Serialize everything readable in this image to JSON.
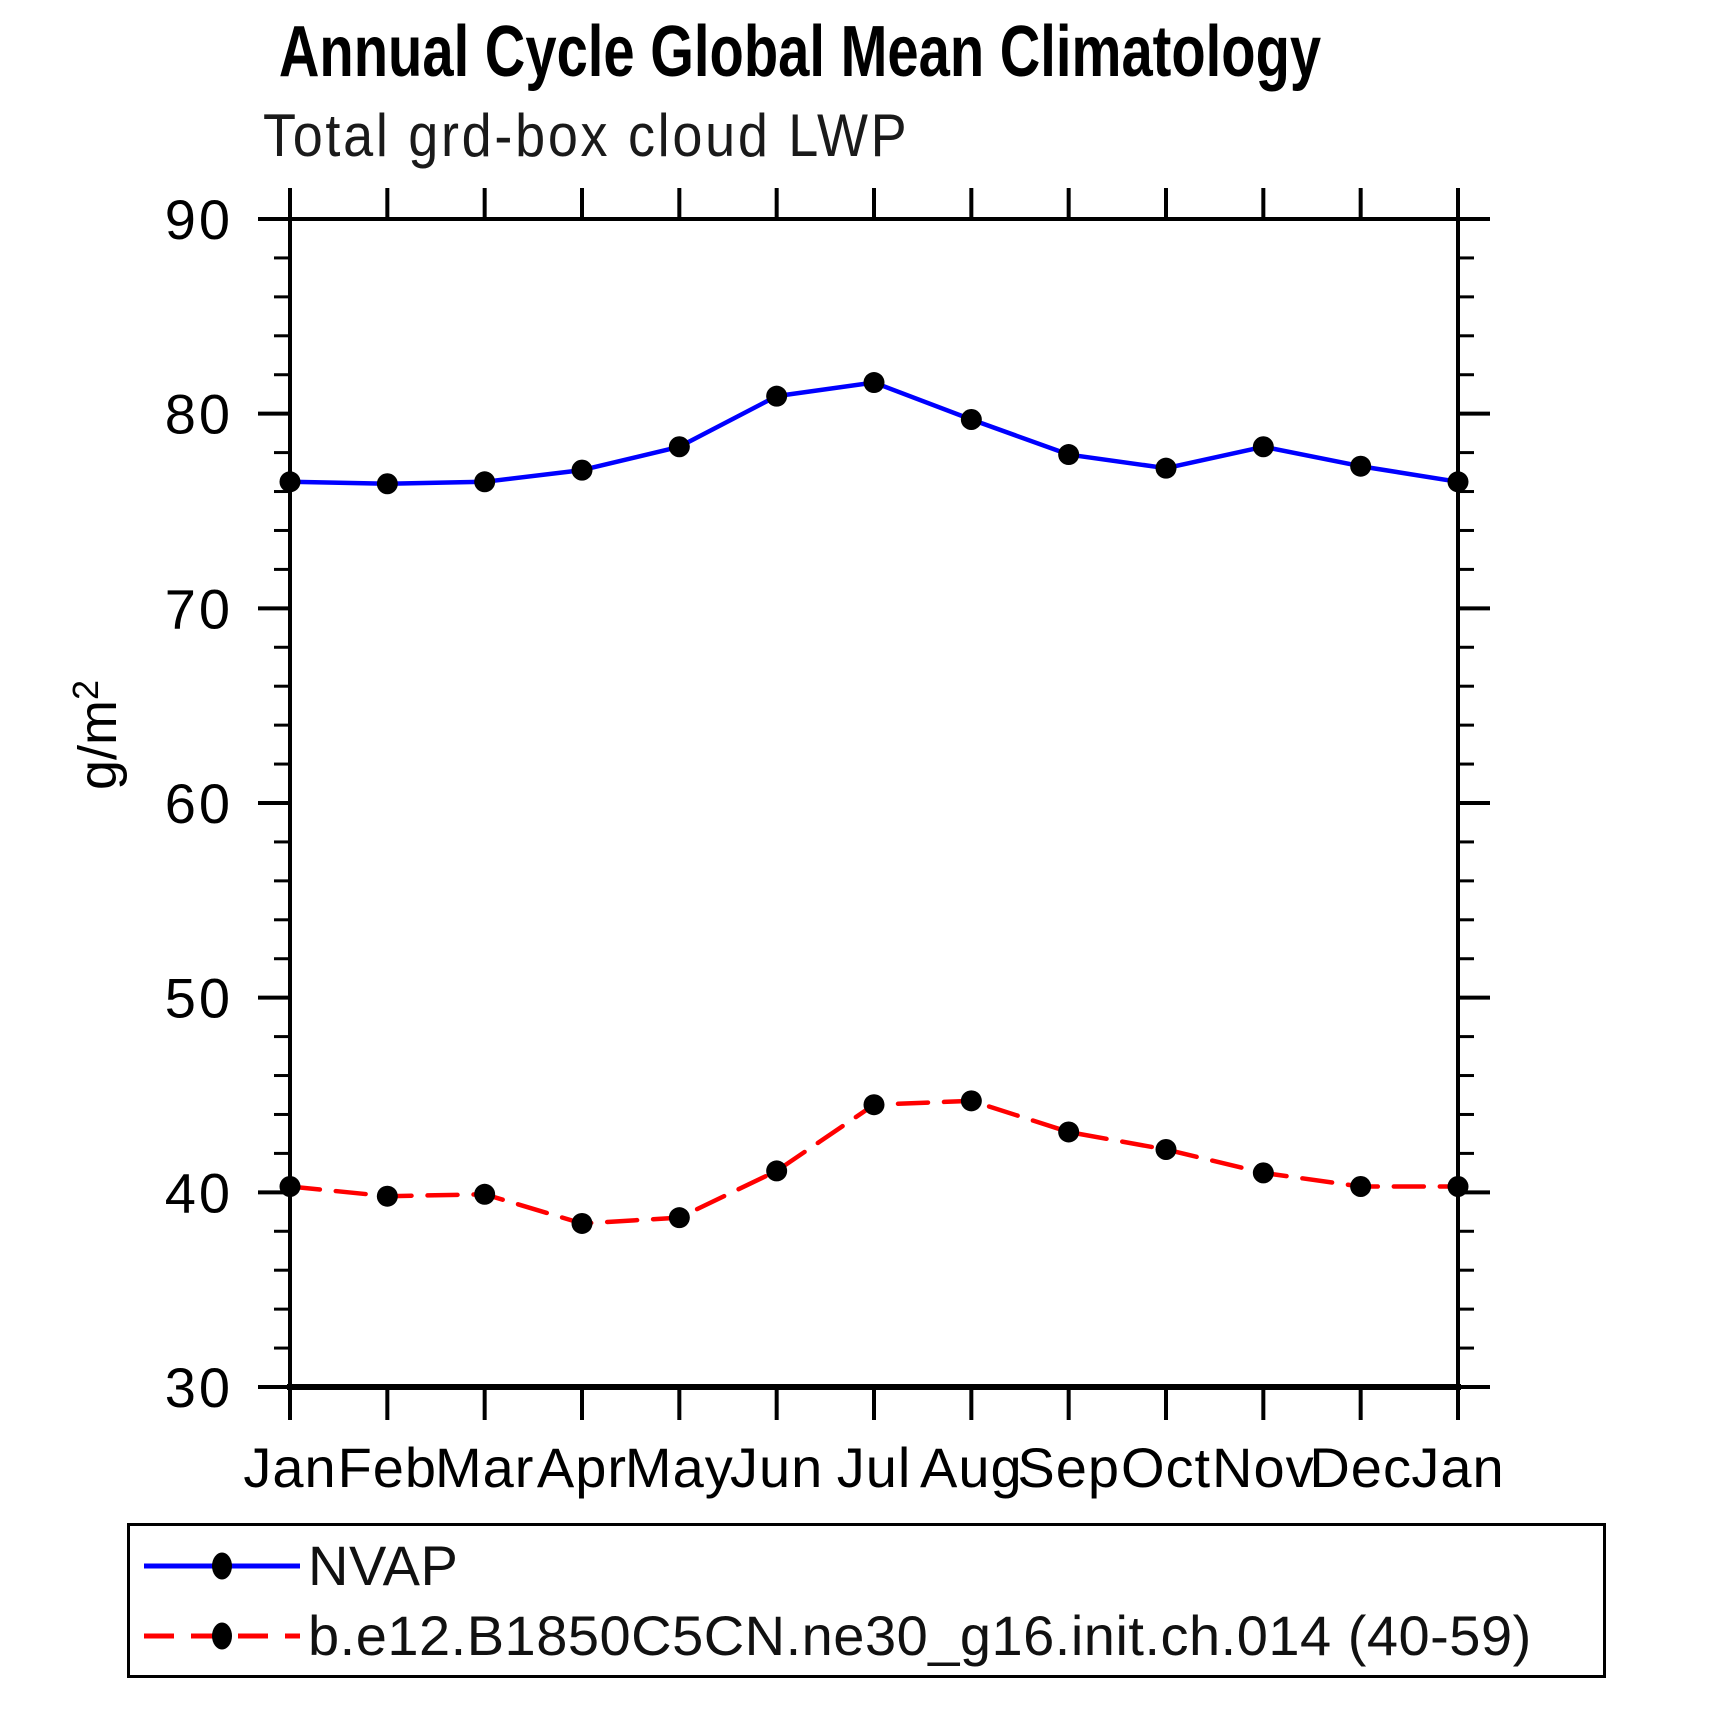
{
  "chart_data": {
    "type": "line",
    "title": "Annual Cycle Global Mean Climatology",
    "subtitle": "Total grd-box cloud LWP",
    "ylabel": "g/m",
    "ylabel_superscript": "2",
    "xlabel": "",
    "categories": [
      "Jan",
      "Feb",
      "Mar",
      "Apr",
      "May",
      "Jun",
      "Jul",
      "Aug",
      "Sep",
      "Oct",
      "Nov",
      "Dec",
      "Jan"
    ],
    "series": [
      {
        "name": "NVAP",
        "color": "#0000ff",
        "line_style": "solid",
        "marker": "filled-circle",
        "values": [
          76.5,
          76.4,
          76.5,
          77.1,
          78.3,
          80.9,
          81.6,
          79.7,
          77.9,
          77.2,
          78.3,
          77.3,
          76.5
        ]
      },
      {
        "name": "b.e12.B1850C5CN.ne30_g16.init.ch.014 (40-59)",
        "color": "#ff0000",
        "line_style": "dashed",
        "marker": "filled-circle",
        "values": [
          40.3,
          39.8,
          39.9,
          38.4,
          38.7,
          41.1,
          44.5,
          44.7,
          43.1,
          42.2,
          41.0,
          40.3,
          40.3
        ]
      }
    ],
    "marker_color": "#000000",
    "ylim": [
      30,
      90
    ],
    "ytick_major_step": 10,
    "ytick_minor_step": 2,
    "grid": false,
    "legend_position": "bottom"
  }
}
